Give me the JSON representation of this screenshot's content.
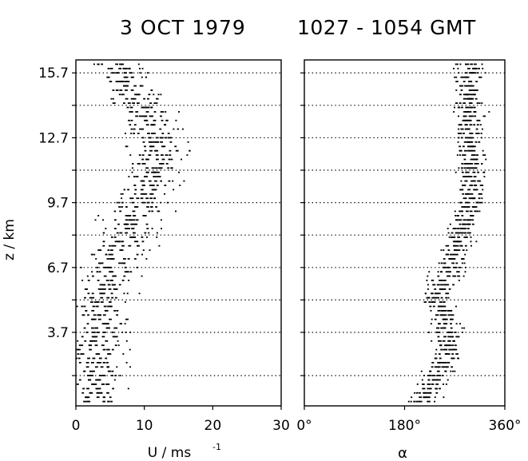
{
  "header": {
    "date": "3 OCT 1979",
    "time": "1027 - 1054 GMT"
  },
  "chart_data": [
    {
      "type": "scatter",
      "panel": "wind-speed",
      "xlabel": "U  / ms",
      "xlabel_sup": "-1",
      "ylabel": "z / km",
      "xlim": [
        0,
        30
      ],
      "ylim": [
        0.3,
        16.3
      ],
      "x_ticks": [
        0,
        10,
        20,
        30
      ],
      "x_tick_labels": [
        "0",
        "10",
        "20",
        "30"
      ],
      "y_ticks": [
        3.7,
        6.7,
        9.7,
        12.7,
        15.7
      ],
      "y_tick_labels": [
        "3.7",
        "6.7",
        "9.7",
        "12.7",
        "15.7"
      ],
      "reference_heights": [
        1.7,
        3.7,
        5.2,
        6.7,
        8.2,
        9.7,
        11.2,
        12.7,
        14.2,
        15.7
      ],
      "grid": "dotted horizontal lines",
      "profile": {
        "z": [
          0.7,
          1.5,
          2.5,
          3.5,
          4.5,
          5.2,
          6.0,
          6.7,
          7.5,
          8.2,
          9.0,
          9.7,
          10.5,
          11.2,
          12.0,
          12.7,
          13.5,
          14.2,
          15.0,
          15.7,
          16.2
        ],
        "u": [
          2.5,
          2.8,
          3.0,
          3.3,
          3.8,
          3.5,
          4.5,
          5.5,
          6.5,
          7.5,
          8.5,
          9.5,
          10.5,
          11.5,
          12.0,
          11.5,
          10.5,
          9.0,
          7.5,
          6.5,
          6.0
        ]
      }
    },
    {
      "type": "scatter",
      "panel": "wind-direction",
      "xlabel": "α",
      "xlim": [
        0,
        360
      ],
      "ylim": [
        0.3,
        16.3
      ],
      "x_ticks": [
        0,
        180,
        360
      ],
      "x_tick_labels": [
        "0°",
        "180°",
        "360°"
      ],
      "reference_heights": [
        1.7,
        3.7,
        5.2,
        6.7,
        8.2,
        9.7,
        11.2,
        12.7,
        14.2,
        15.7
      ],
      "grid": "dotted horizontal lines",
      "profile": {
        "z": [
          0.7,
          1.5,
          2.5,
          3.5,
          4.5,
          5.2,
          6.0,
          6.7,
          7.5,
          8.2,
          9.0,
          9.7,
          10.5,
          11.2,
          12.0,
          12.7,
          13.5,
          14.2,
          15.0,
          15.7,
          16.2
        ],
        "alpha": [
          215,
          235,
          255,
          258,
          250,
          235,
          252,
          262,
          272,
          282,
          292,
          298,
          300,
          300,
          298,
          296,
          296,
          295,
          297,
          298,
          300
        ]
      }
    }
  ]
}
